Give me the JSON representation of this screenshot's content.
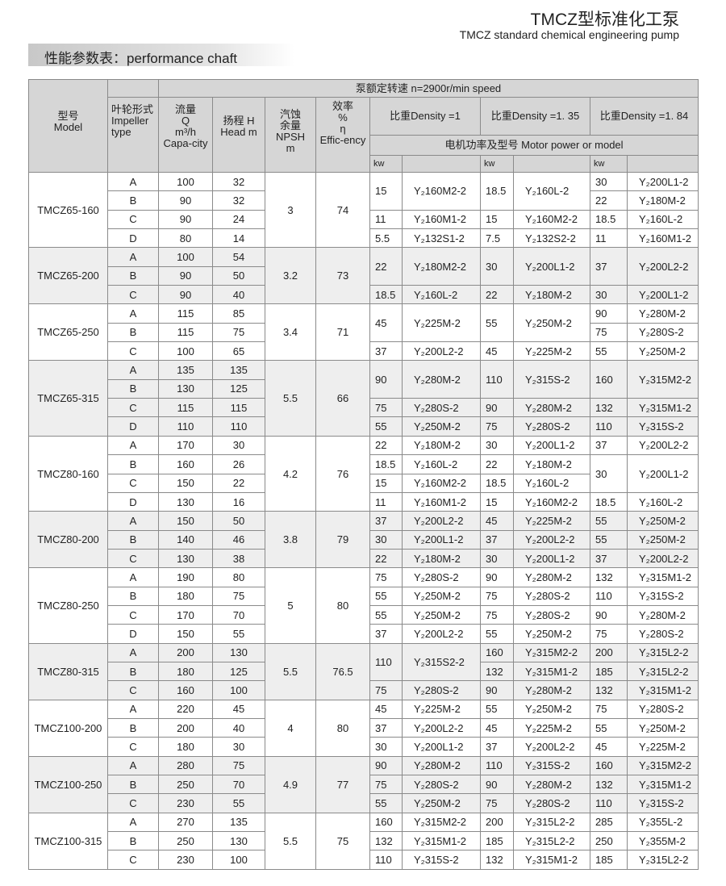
{
  "header": {
    "title_cn": "TMCZ型标准化工泵",
    "title_en": "TMCZ standard chemical engineering pump",
    "section": "性能参数表：performance chaft"
  },
  "table_header": {
    "model": "型号\nModel",
    "impeller": "叶轮形式\nImpeller type",
    "speed": "泵额定转速  n=2900r/min speed",
    "capacity": "流量\nQ\nm³/h\nCapa-city",
    "head": "扬程 H\nHead m",
    "npsh": "汽蚀\n余量\nNPSH\nm",
    "efficiency": "效率\n%\nη\nEffic-ency",
    "density_1": "比重Density =1",
    "density_135": "比重Density =1. 35",
    "density_184": "比重Density =1. 84",
    "motor": "电机功率及型号  Motor power or model",
    "kw": "kw"
  },
  "colors": {
    "header_bg": "#d6d6d6",
    "alt_row_bg": "#eeeeee",
    "border": "#8a8a8a"
  },
  "groups": [
    {
      "model": "TMCZ65-160",
      "npsh": "3",
      "eff": "74",
      "rows": [
        [
          "A",
          "100",
          "32"
        ],
        [
          "B",
          "90",
          "32"
        ],
        [
          "C",
          "90",
          "24"
        ],
        [
          "D",
          "80",
          "14"
        ]
      ],
      "d1": [
        [
          "15",
          "Y₂160M2-2",
          2
        ],
        [
          "11",
          "Y₂160M1-2",
          1
        ],
        [
          "5.5",
          "Y₂132S1-2",
          1
        ]
      ],
      "d135": [
        [
          "18.5",
          "Y₂160L-2",
          2
        ],
        [
          "15",
          "Y₂160M2-2",
          1
        ],
        [
          "7.5",
          "Y₂132S2-2",
          1
        ]
      ],
      "d184": [
        [
          "30",
          "Y₂200L1-2",
          1
        ],
        [
          "22",
          "Y₂180M-2",
          1
        ],
        [
          "18.5",
          "Y₂160L-2",
          1
        ],
        [
          "11",
          "Y₂160M1-2",
          1
        ]
      ]
    },
    {
      "model": "TMCZ65-200",
      "npsh": "3.2",
      "eff": "73",
      "rows": [
        [
          "A",
          "100",
          "54"
        ],
        [
          "B",
          "90",
          "50"
        ],
        [
          "C",
          "90",
          "40"
        ]
      ],
      "d1": [
        [
          "22",
          "Y₂180M2-2",
          2
        ],
        [
          "18.5",
          "Y₂160L-2",
          1
        ]
      ],
      "d135": [
        [
          "30",
          "Y₂200L1-2",
          2
        ],
        [
          "22",
          "Y₂180M-2",
          1
        ]
      ],
      "d184": [
        [
          "37",
          "Y₂200L2-2",
          2
        ],
        [
          "30",
          "Y₂200L1-2",
          1
        ]
      ]
    },
    {
      "model": "TMCZ65-250",
      "npsh": "3.4",
      "eff": "71",
      "rows": [
        [
          "A",
          "115",
          "85"
        ],
        [
          "B",
          "115",
          "75"
        ],
        [
          "C",
          "100",
          "65"
        ]
      ],
      "d1": [
        [
          "45",
          "Y₂225M-2",
          2
        ],
        [
          "37",
          "Y₂200L2-2",
          1
        ]
      ],
      "d135": [
        [
          "55",
          "Y₂250M-2",
          2
        ],
        [
          "45",
          "Y₂225M-2",
          1
        ]
      ],
      "d184": [
        [
          "90",
          "Y₂280M-2",
          1
        ],
        [
          "75",
          "Y₂280S-2",
          1
        ],
        [
          "55",
          "Y₂250M-2",
          1
        ]
      ]
    },
    {
      "model": "TMCZ65-315",
      "npsh": "5.5",
      "eff": "66",
      "rows": [
        [
          "A",
          "135",
          "135"
        ],
        [
          "B",
          "130",
          "125"
        ],
        [
          "C",
          "115",
          "115"
        ],
        [
          "D",
          "110",
          "110"
        ]
      ],
      "d1": [
        [
          "90",
          "Y₂280M-2",
          2
        ],
        [
          "75",
          "Y₂280S-2",
          1
        ],
        [
          "55",
          "Y₂250M-2",
          1
        ]
      ],
      "d135": [
        [
          "110",
          "Y₂315S-2",
          2
        ],
        [
          "90",
          "Y₂280M-2",
          1
        ],
        [
          "75",
          "Y₂280S-2",
          1
        ]
      ],
      "d184": [
        [
          "160",
          "Y₂315M2-2",
          2
        ],
        [
          "132",
          "Y₂315M1-2",
          1
        ],
        [
          "110",
          "Y₂315S-2",
          1
        ]
      ]
    },
    {
      "model": "TMCZ80-160",
      "npsh": "4.2",
      "eff": "76",
      "rows": [
        [
          "A",
          "170",
          "30"
        ],
        [
          "B",
          "160",
          "26"
        ],
        [
          "C",
          "150",
          "22"
        ],
        [
          "D",
          "130",
          "16"
        ]
      ],
      "d1": [
        [
          "22",
          "Y₂180M-2",
          1
        ],
        [
          "18.5",
          "Y₂160L-2",
          1
        ],
        [
          "15",
          "Y₂160M2-2",
          1
        ],
        [
          "11",
          "Y₂160M1-2",
          1
        ]
      ],
      "d135": [
        [
          "30",
          "Y₂200L1-2",
          1
        ],
        [
          "22",
          "Y₂180M-2",
          1
        ],
        [
          "18.5",
          "Y₂160L-2",
          1
        ],
        [
          "15",
          "Y₂160M2-2",
          1
        ]
      ],
      "d184": [
        [
          "37",
          "Y₂200L2-2",
          1
        ],
        [
          "30",
          "Y₂200L1-2",
          2
        ],
        [
          "18.5",
          "Y₂160L-2",
          1
        ]
      ]
    },
    {
      "model": "TMCZ80-200",
      "npsh": "3.8",
      "eff": "79",
      "rows": [
        [
          "A",
          "150",
          "50"
        ],
        [
          "B",
          "140",
          "46"
        ],
        [
          "C",
          "130",
          "38"
        ]
      ],
      "d1": [
        [
          "37",
          "Y₂200L2-2",
          1
        ],
        [
          "30",
          "Y₂200L1-2",
          1
        ],
        [
          "22",
          "Y₂180M-2",
          1
        ]
      ],
      "d135": [
        [
          "45",
          "Y₂225M-2",
          1
        ],
        [
          "37",
          "Y₂200L2-2",
          1
        ],
        [
          "30",
          "Y₂200L1-2",
          1
        ]
      ],
      "d184": [
        [
          "55",
          "Y₂250M-2",
          1
        ],
        [
          "55",
          "Y₂250M-2",
          1
        ],
        [
          "37",
          "Y₂200L2-2",
          1
        ]
      ]
    },
    {
      "model": "TMCZ80-250",
      "npsh": "5",
      "eff": "80",
      "rows": [
        [
          "A",
          "190",
          "80"
        ],
        [
          "B",
          "180",
          "75"
        ],
        [
          "C",
          "170",
          "70"
        ],
        [
          "D",
          "150",
          "55"
        ]
      ],
      "d1": [
        [
          "75",
          "Y₂280S-2",
          1
        ],
        [
          "55",
          "Y₂250M-2",
          1
        ],
        [
          "55",
          "Y₂250M-2",
          1
        ],
        [
          "37",
          "Y₂200L2-2",
          1
        ]
      ],
      "d135": [
        [
          "90",
          "Y₂280M-2",
          1
        ],
        [
          "75",
          "Y₂280S-2",
          1
        ],
        [
          "75",
          "Y₂280S-2",
          1
        ],
        [
          "55",
          "Y₂250M-2",
          1
        ]
      ],
      "d184": [
        [
          "132",
          "Y₂315M1-2",
          1
        ],
        [
          "110",
          "Y₂315S-2",
          1
        ],
        [
          "90",
          "Y₂280M-2",
          1
        ],
        [
          "75",
          "Y₂280S-2",
          1
        ]
      ]
    },
    {
      "model": "TMCZ80-315",
      "npsh": "5.5",
      "eff": "76.5",
      "rows": [
        [
          "A",
          "200",
          "130"
        ],
        [
          "B",
          "180",
          "125"
        ],
        [
          "C",
          "160",
          "100"
        ]
      ],
      "d1": [
        [
          "110",
          "Y₂315S2-2",
          2
        ],
        [
          "75",
          "Y₂280S-2",
          1
        ]
      ],
      "d135": [
        [
          "160",
          "Y₂315M2-2",
          1
        ],
        [
          "132",
          "Y₂315M1-2",
          1
        ],
        [
          "90",
          "Y₂280M-2",
          1
        ]
      ],
      "d184": [
        [
          "200",
          "Y₂315L2-2",
          1
        ],
        [
          "185",
          "Y₂315L2-2",
          1
        ],
        [
          "132",
          "Y₂315M1-2",
          1
        ]
      ]
    },
    {
      "model": "TMCZ100-200",
      "npsh": "4",
      "eff": "80",
      "rows": [
        [
          "A",
          "220",
          "45"
        ],
        [
          "B",
          "200",
          "40"
        ],
        [
          "C",
          "180",
          "30"
        ]
      ],
      "d1": [
        [
          "45",
          "Y₂225M-2",
          1
        ],
        [
          "37",
          "Y₂200L2-2",
          1
        ],
        [
          "30",
          "Y₂200L1-2",
          1
        ]
      ],
      "d135": [
        [
          "55",
          "Y₂250M-2",
          1
        ],
        [
          "45",
          "Y₂225M-2",
          1
        ],
        [
          "37",
          "Y₂200L2-2",
          1
        ]
      ],
      "d184": [
        [
          "75",
          "Y₂280S-2",
          1
        ],
        [
          "55",
          "Y₂250M-2",
          1
        ],
        [
          "45",
          "Y₂225M-2",
          1
        ]
      ]
    },
    {
      "model": "TMCZ100-250",
      "npsh": "4.9",
      "eff": "77",
      "rows": [
        [
          "A",
          "280",
          "75"
        ],
        [
          "B",
          "250",
          "70"
        ],
        [
          "C",
          "230",
          "55"
        ]
      ],
      "d1": [
        [
          "90",
          "Y₂280M-2",
          1
        ],
        [
          "75",
          "Y₂280S-2",
          1
        ],
        [
          "55",
          "Y₂250M-2",
          1
        ]
      ],
      "d135": [
        [
          "110",
          "Y₂315S-2",
          1
        ],
        [
          "90",
          "Y₂280M-2",
          1
        ],
        [
          "75",
          "Y₂280S-2",
          1
        ]
      ],
      "d184": [
        [
          "160",
          "Y₂315M2-2",
          1
        ],
        [
          "132",
          "Y₂315M1-2",
          1
        ],
        [
          "110",
          "Y₂315S-2",
          1
        ]
      ]
    },
    {
      "model": "TMCZ100-315",
      "npsh": "5.5",
      "eff": "75",
      "rows": [
        [
          "A",
          "270",
          "135"
        ],
        [
          "B",
          "250",
          "130"
        ],
        [
          "C",
          "230",
          "100"
        ]
      ],
      "d1": [
        [
          "160",
          "Y₂315M2-2",
          1
        ],
        [
          "132",
          "Y₂315M1-2",
          1
        ],
        [
          "110",
          "Y₂315S-2",
          1
        ]
      ],
      "d135": [
        [
          "200",
          "Y₂315L2-2",
          1
        ],
        [
          "185",
          "Y₂315L2-2",
          1
        ],
        [
          "132",
          "Y₂315M1-2",
          1
        ]
      ],
      "d184": [
        [
          "285",
          "Y₂355L-2",
          1
        ],
        [
          "250",
          "Y₂355M-2",
          1
        ],
        [
          "185",
          "Y₂315L2-2",
          1
        ]
      ]
    }
  ]
}
